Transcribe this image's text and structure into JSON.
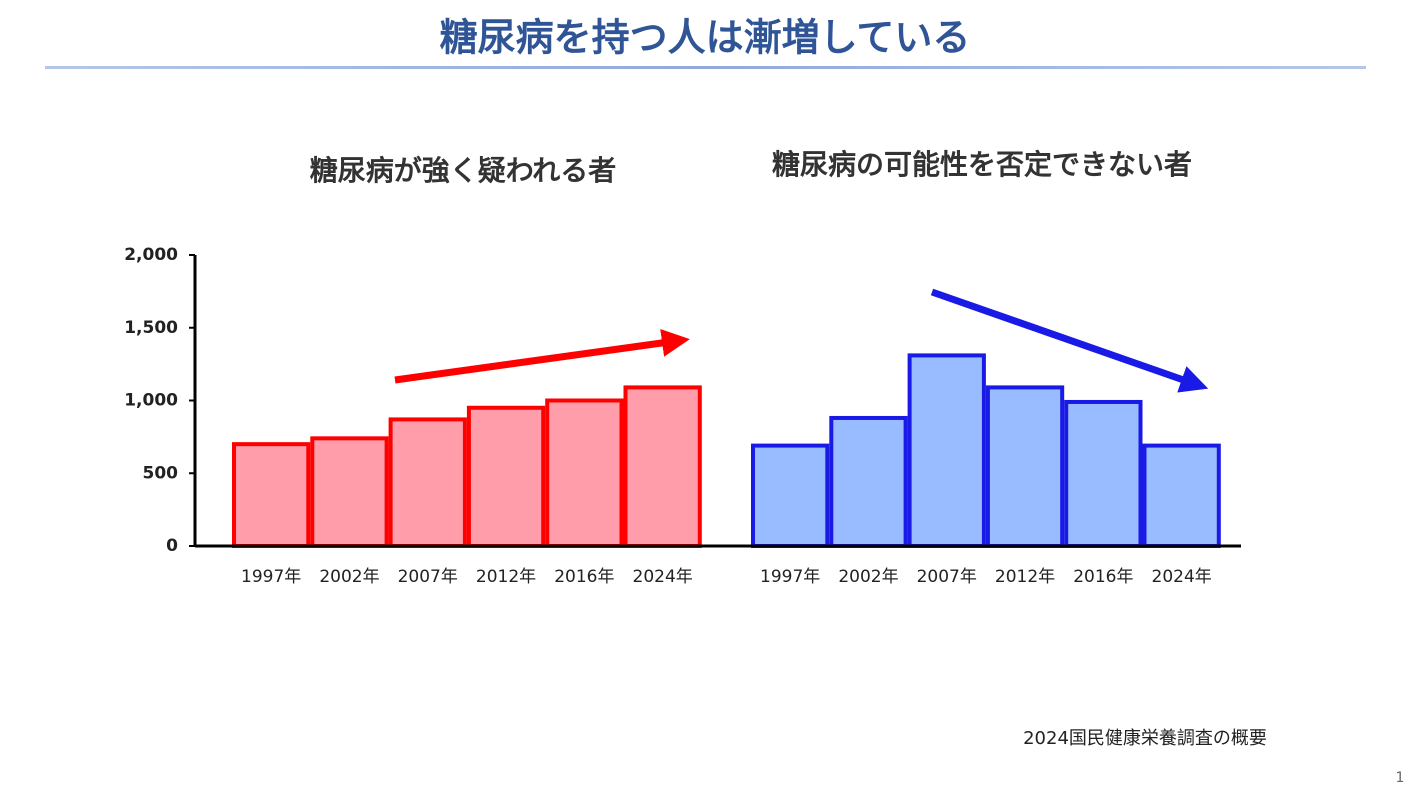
{
  "title": "糖尿病を持つ人は漸増している",
  "source": "2024国民健康栄養調査の概要",
  "page_number": "1",
  "chart_data": [
    {
      "type": "bar",
      "title": "糖尿病が強く疑われる者",
      "categories": [
        "1997年",
        "2002年",
        "2007年",
        "2012年",
        "2016年",
        "2024年"
      ],
      "values": [
        700,
        740,
        870,
        950,
        1000,
        1090
      ],
      "color": "#ff9eaa",
      "edge_color": "#ff0000",
      "ylim": [
        0,
        2000
      ],
      "yticks": [
        0,
        500,
        {
          "value": 1000,
          "label": "1,000"
        },
        {
          "value": 1500,
          "label": "1,500"
        },
        {
          "value": 2000,
          "label": "2,000"
        }
      ]
    },
    {
      "type": "bar",
      "title": "糖尿病の可能性を否定できない者",
      "categories": [
        "1997年",
        "2002年",
        "2007年",
        "2012年",
        "2016年",
        "2024年"
      ],
      "values": [
        690,
        880,
        1310,
        1090,
        990,
        690
      ],
      "color": "#99bbff",
      "edge_color": "#1a1ae6"
    }
  ]
}
